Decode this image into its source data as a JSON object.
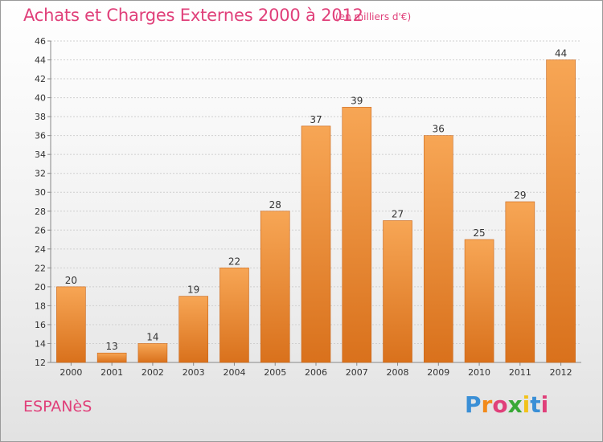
{
  "header": {
    "title": "Achats et Charges Externes 2000 à 2012",
    "subtitle": "(en milliers d'€)"
  },
  "footer": {
    "place": "ESPANèS",
    "brand": "Proxiti",
    "brand_colors": [
      "#3a8fd6",
      "#f28a1a",
      "#e0407a",
      "#38a836",
      "#f2c21a",
      "#3a8fd6",
      "#e0407a"
    ]
  },
  "colors": {
    "bar_light": "#f7a655",
    "bar_dark": "#d9711c",
    "bar_edge": "#c9661a",
    "grid": "#cfcfcf",
    "axis_text": "#333333"
  },
  "chart_data": {
    "type": "bar",
    "categories": [
      "2000",
      "2001",
      "2002",
      "2003",
      "2004",
      "2005",
      "2006",
      "2007",
      "2008",
      "2009",
      "2010",
      "2011",
      "2012"
    ],
    "values": [
      20,
      13,
      14,
      19,
      22,
      28,
      37,
      39,
      27,
      36,
      25,
      29,
      44
    ],
    "data_labels": [
      "20",
      "13",
      "14",
      "19",
      "22",
      "28",
      "37",
      "39",
      "27",
      "36",
      "25",
      "29",
      "44"
    ],
    "yticks": [
      12,
      14,
      16,
      18,
      20,
      22,
      24,
      26,
      28,
      30,
      32,
      34,
      36,
      38,
      40,
      42,
      44,
      46
    ],
    "ylim": [
      12,
      46
    ],
    "grid": true
  }
}
